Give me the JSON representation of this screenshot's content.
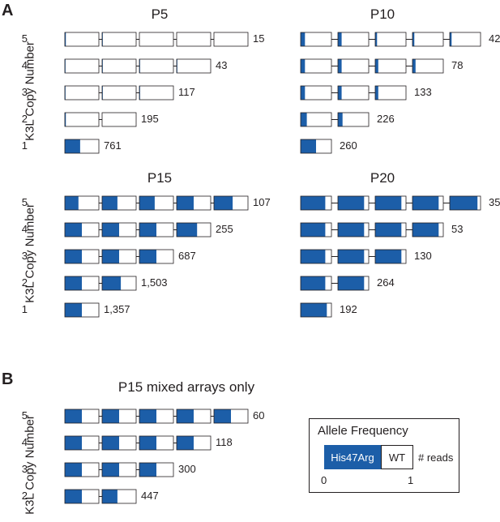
{
  "colors": {
    "his47arg": "#1c5ea8",
    "wt": "#ffffff",
    "stroke": "#231f20"
  },
  "panel_a": {
    "letter": "A",
    "ylabel": "K3L Copy Number"
  },
  "panel_b": {
    "letter": "B",
    "ylabel": "K3L Copy Number"
  },
  "chart_data": [
    {
      "type": "diagram",
      "panel": "A",
      "title": "P5",
      "rows": [
        {
          "copies": 5,
          "reads": "15",
          "freq": [
            0.03,
            0.02,
            0.0,
            0.0,
            0.0
          ]
        },
        {
          "copies": 4,
          "reads": "43",
          "freq": [
            0.02,
            0.02,
            0.02,
            0.02
          ]
        },
        {
          "copies": 3,
          "reads": "117",
          "freq": [
            0.02,
            0.02,
            0.02
          ]
        },
        {
          "copies": 2,
          "reads": "195",
          "freq": [
            0.03,
            0.0
          ]
        },
        {
          "copies": 1,
          "reads": "761",
          "freq": [
            0.45
          ]
        }
      ]
    },
    {
      "type": "diagram",
      "panel": "A",
      "title": "P10",
      "rows": [
        {
          "copies": 5,
          "reads": "42",
          "freq": [
            0.14,
            0.12,
            0.06,
            0.06,
            0.06
          ]
        },
        {
          "copies": 4,
          "reads": "78",
          "freq": [
            0.14,
            0.12,
            0.1,
            0.1
          ]
        },
        {
          "copies": 3,
          "reads": "133",
          "freq": [
            0.14,
            0.12,
            0.1
          ]
        },
        {
          "copies": 2,
          "reads": "226",
          "freq": [
            0.2,
            0.15
          ]
        },
        {
          "copies": 1,
          "reads": "260",
          "freq": [
            0.5
          ]
        }
      ]
    },
    {
      "type": "diagram",
      "panel": "A",
      "title": "P15",
      "rows": [
        {
          "copies": 5,
          "reads": "107",
          "freq": [
            0.4,
            0.45,
            0.45,
            0.5,
            0.55
          ]
        },
        {
          "copies": 4,
          "reads": "255",
          "freq": [
            0.5,
            0.5,
            0.5,
            0.6
          ]
        },
        {
          "copies": 3,
          "reads": "687",
          "freq": [
            0.5,
            0.5,
            0.5
          ]
        },
        {
          "copies": 2,
          "reads": "1,503",
          "freq": [
            0.5,
            0.55
          ]
        },
        {
          "copies": 1,
          "reads": "1,357",
          "freq": [
            0.5
          ]
        }
      ]
    },
    {
      "type": "diagram",
      "panel": "A",
      "title": "P20",
      "rows": [
        {
          "copies": 5,
          "reads": "35",
          "freq": [
            0.8,
            0.85,
            0.85,
            0.85,
            0.9
          ]
        },
        {
          "copies": 4,
          "reads": "53",
          "freq": [
            0.8,
            0.85,
            0.85,
            0.85
          ]
        },
        {
          "copies": 3,
          "reads": "130",
          "freq": [
            0.8,
            0.85,
            0.85
          ]
        },
        {
          "copies": 2,
          "reads": "264",
          "freq": [
            0.8,
            0.85
          ]
        },
        {
          "copies": 1,
          "reads": "192",
          "freq": [
            0.85
          ]
        }
      ]
    },
    {
      "type": "diagram",
      "panel": "B",
      "title": "P15 mixed arrays only",
      "rows": [
        {
          "copies": 5,
          "reads": "60",
          "freq": [
            0.5,
            0.5,
            0.5,
            0.5,
            0.5
          ]
        },
        {
          "copies": 4,
          "reads": "118",
          "freq": [
            0.5,
            0.5,
            0.5,
            0.5
          ]
        },
        {
          "copies": 3,
          "reads": "300",
          "freq": [
            0.5,
            0.5,
            0.5
          ]
        },
        {
          "copies": 2,
          "reads": "447",
          "freq": [
            0.5,
            0.45
          ]
        }
      ]
    }
  ],
  "legend": {
    "title": "Allele Frequency",
    "blue_label": "His47Arg",
    "white_label": "WT",
    "reads_label": "# reads",
    "min_label": "0",
    "max_label": "1"
  }
}
